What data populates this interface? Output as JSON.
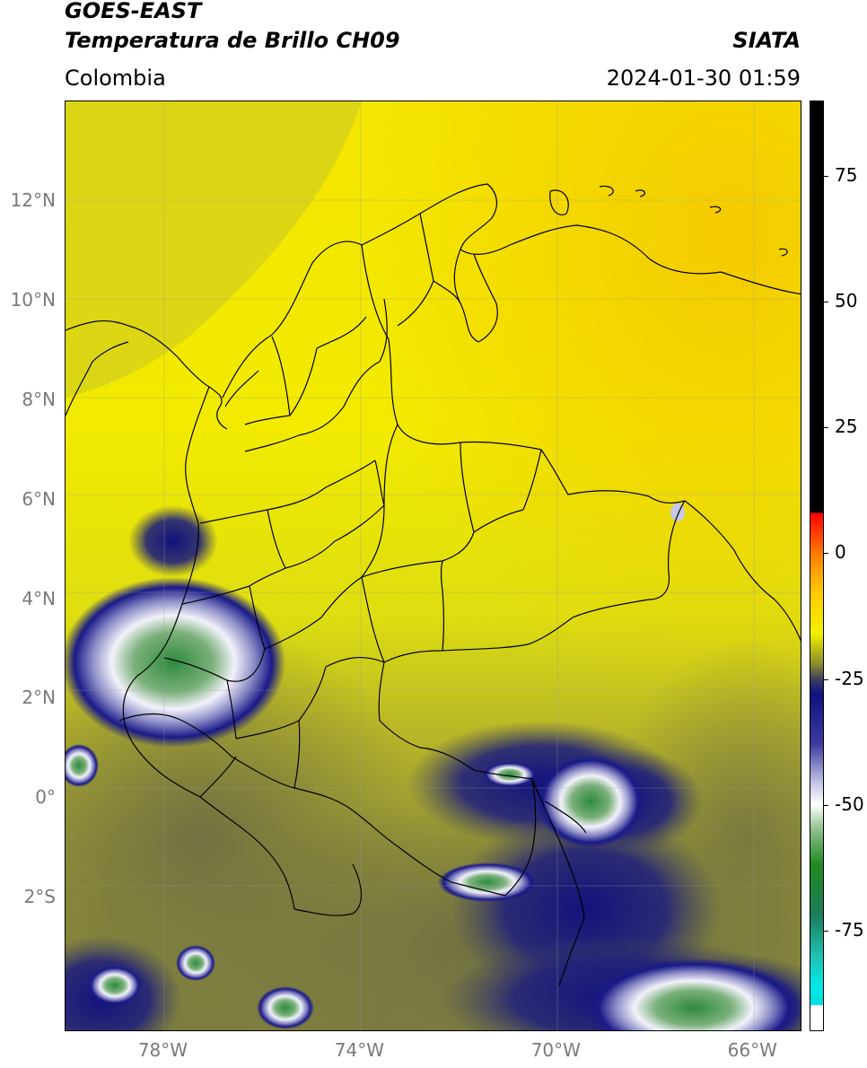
{
  "header": {
    "satellite": "GOES-EAST",
    "product": "Temperatura de Brillo CH09",
    "organization": "SIATA",
    "region": "Colombia",
    "datetime": "2024-01-30 01:59"
  },
  "axes": {
    "lat_ticks": [
      {
        "value": 12,
        "label": "12°N"
      },
      {
        "value": 10,
        "label": "10°N"
      },
      {
        "value": 8,
        "label": "8°N"
      },
      {
        "value": 6,
        "label": "6°N"
      },
      {
        "value": 4,
        "label": "4°N"
      },
      {
        "value": 2,
        "label": "2°N"
      },
      {
        "value": 0,
        "label": "0°"
      },
      {
        "value": -2,
        "label": "2°S"
      }
    ],
    "lon_ticks": [
      {
        "value": -78,
        "label": "78°W"
      },
      {
        "value": -74,
        "label": "74°W"
      },
      {
        "value": -70,
        "label": "70°W"
      },
      {
        "value": -66,
        "label": "66°W"
      }
    ],
    "lat_range": [
      -4.7,
      14.0
    ],
    "lon_range": [
      -80.0,
      -65.0
    ],
    "grid": true
  },
  "colorbar": {
    "range": [
      -95,
      90
    ],
    "ticks": [
      {
        "value": 75,
        "label": "75"
      },
      {
        "value": 50,
        "label": "50"
      },
      {
        "value": 25,
        "label": "25"
      },
      {
        "value": 0,
        "label": "0"
      },
      {
        "value": -25,
        "label": "-25"
      },
      {
        "value": -50,
        "label": "-50"
      },
      {
        "value": -75,
        "label": "-75"
      }
    ],
    "stops": [
      {
        "value": 90,
        "color": "#000000"
      },
      {
        "value": 8,
        "color": "#000000"
      },
      {
        "value": 8,
        "color": "#ff0000"
      },
      {
        "value": 0,
        "color": "#ff7a00"
      },
      {
        "value": -8,
        "color": "#ffcc00"
      },
      {
        "value": -16,
        "color": "#f2f000"
      },
      {
        "value": -22,
        "color": "#8c8c2a"
      },
      {
        "value": -25,
        "color": "#404060"
      },
      {
        "value": -28,
        "color": "#101080"
      },
      {
        "value": -38,
        "color": "#3c3ca0"
      },
      {
        "value": -46,
        "color": "#c8c8e8"
      },
      {
        "value": -50,
        "color": "#ffffff"
      },
      {
        "value": -55,
        "color": "#90c090"
      },
      {
        "value": -62,
        "color": "#208a20"
      },
      {
        "value": -72,
        "color": "#1c7c5c"
      },
      {
        "value": -80,
        "color": "#20c0b0"
      },
      {
        "value": -86,
        "color": "#00e8e8"
      },
      {
        "value": -90,
        "color": "#00e0e0"
      },
      {
        "value": -90,
        "color": "#ffffff"
      },
      {
        "value": -95,
        "color": "#ffffff"
      }
    ]
  },
  "palette": {
    "warm_yellow": "#f6ee00",
    "orange_yellow": "#f5cf00",
    "olive": "#9a9a30",
    "dark_olive": "#6e6e40",
    "navy": "#13137a",
    "cloud_white": "#f0f0f8",
    "cloud_green": "#3a9a4a"
  }
}
